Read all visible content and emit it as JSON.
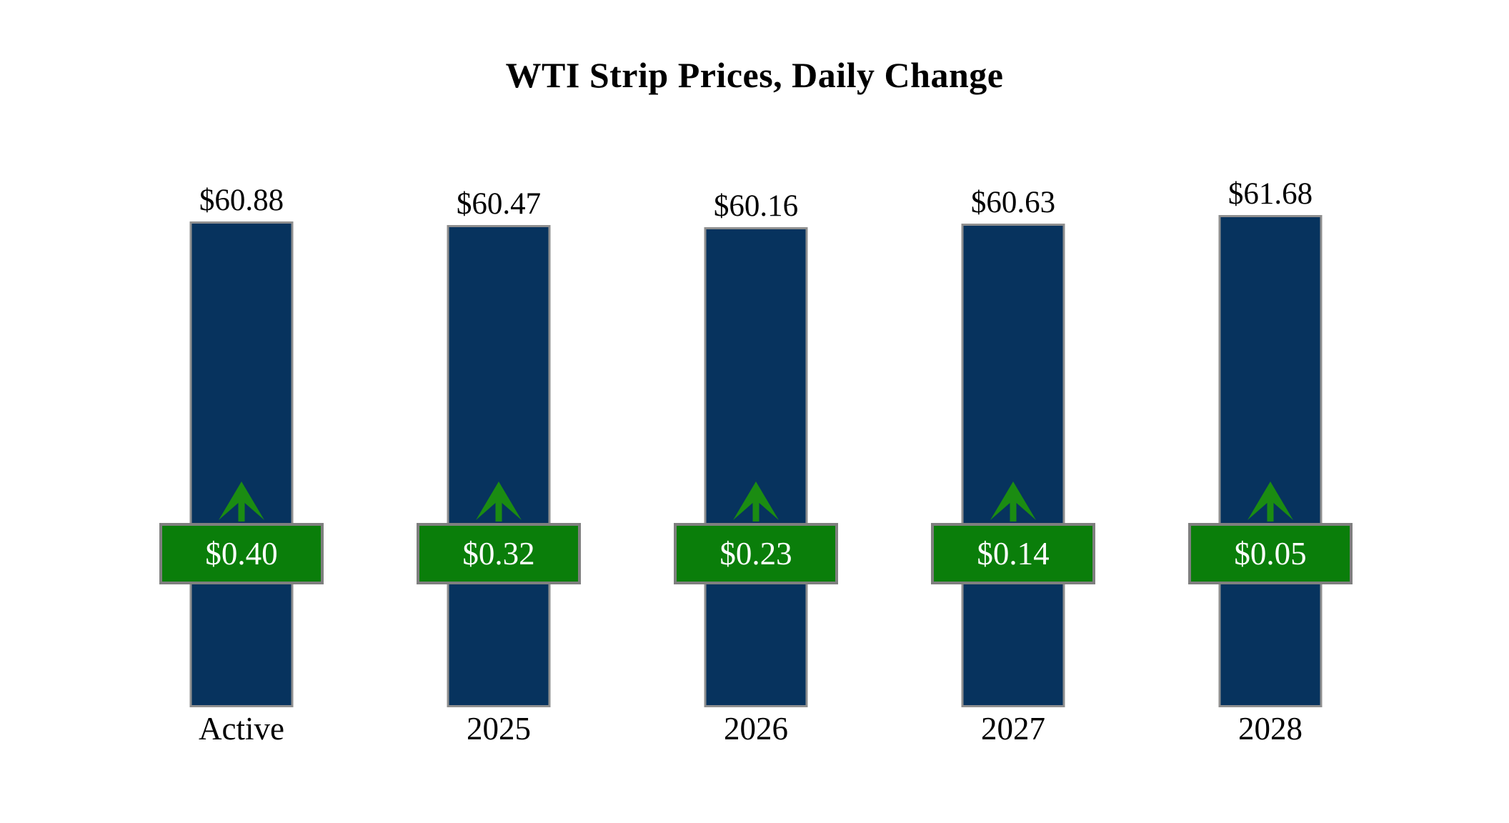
{
  "title": "WTI Strip Prices, Daily Change",
  "chart_data": {
    "type": "bar",
    "title": "WTI Strip Prices, Daily Change",
    "categories": [
      "Active",
      "2025",
      "2026",
      "2027",
      "2028"
    ],
    "values": [
      60.88,
      60.47,
      60.16,
      60.63,
      61.68
    ],
    "value_labels": [
      "$60.88",
      "$60.47",
      "$60.16",
      "$60.63",
      "$61.68"
    ],
    "daily_changes": [
      0.4,
      0.32,
      0.23,
      0.14,
      0.05
    ],
    "change_labels": [
      "$0.40",
      "$0.32",
      "$0.23",
      "$0.14",
      "$0.05"
    ],
    "change_direction": "up",
    "xlabel": "",
    "ylabel": "",
    "ylim": [
      0,
      72
    ],
    "grid": false,
    "legend": false,
    "bar_color": "#07335e",
    "bar_border_color": "#8f8f8f",
    "badge_color": "#0a7e0a",
    "badge_border_color": "#7f7f7f",
    "arrow_color": "#1b8c12",
    "label_color": "#000000",
    "badge_text_color": "#ffffff"
  }
}
